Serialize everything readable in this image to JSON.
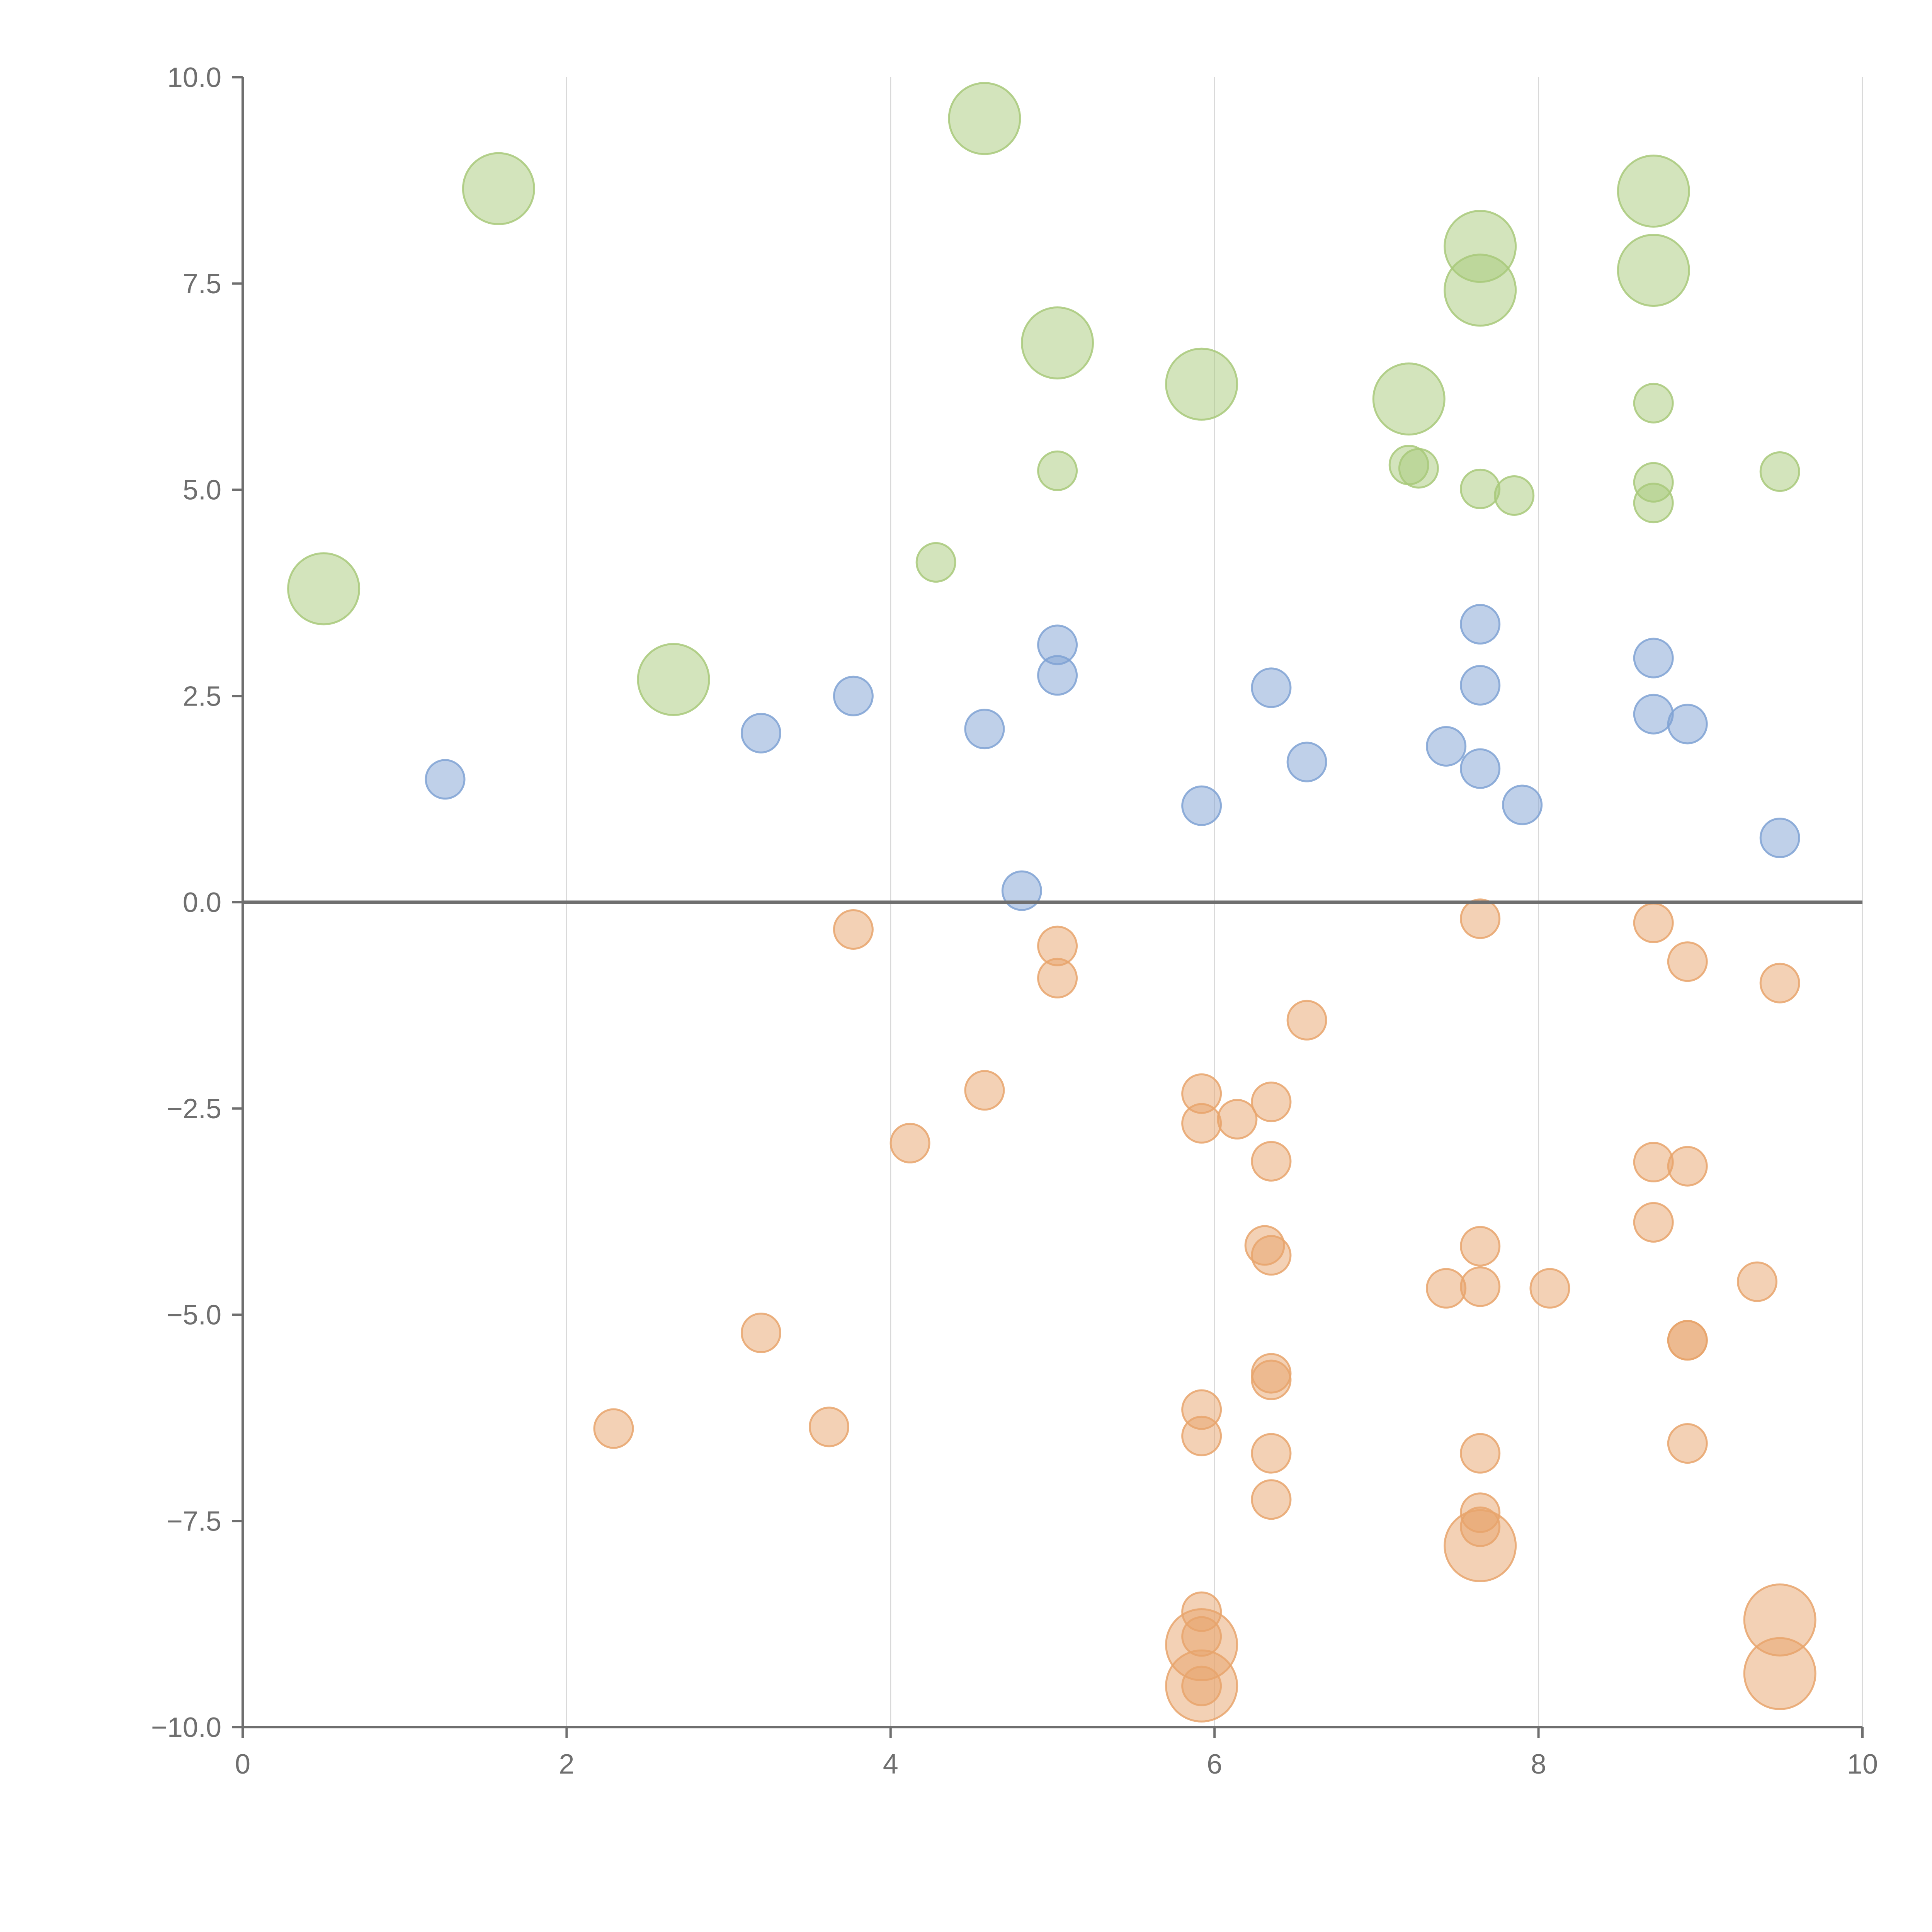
{
  "chart_data": {
    "type": "scatter",
    "title": "",
    "xlabel": "",
    "ylabel": "",
    "xlim": [
      0,
      10
    ],
    "ylim": [
      -10,
      10
    ],
    "grid": "vertical",
    "zero_line": true,
    "x_ticks": [
      0,
      2,
      4,
      6,
      8,
      10
    ],
    "x_tick_labels": [
      "0",
      "2",
      "4",
      "6",
      "8",
      "10"
    ],
    "y_ticks": [
      10,
      7.5,
      5,
      2.5,
      0,
      -2.5,
      -5,
      -7.5,
      -10
    ],
    "y_tick_labels": [
      "10.0",
      "7.5",
      "5.0",
      "2.5",
      "0.0",
      "−2.5",
      "−5.0",
      "−7.5",
      "−10.0"
    ],
    "size_legend": "relative size: 1 = small marker, 2 = large marker",
    "series": [
      {
        "name": "green",
        "color": "#a8c97a",
        "points": [
          {
            "x": 0.5,
            "y": 3.8,
            "s": 2
          },
          {
            "x": 1.58,
            "y": 8.65,
            "s": 2
          },
          {
            "x": 2.66,
            "y": 2.7,
            "s": 2
          },
          {
            "x": 4.28,
            "y": 4.12,
            "s": 1
          },
          {
            "x": 4.58,
            "y": 9.5,
            "s": 2
          },
          {
            "x": 5.03,
            "y": 6.78,
            "s": 2
          },
          {
            "x": 5.03,
            "y": 5.23,
            "s": 1
          },
          {
            "x": 5.92,
            "y": 6.28,
            "s": 2
          },
          {
            "x": 7.2,
            "y": 6.1,
            "s": 2
          },
          {
            "x": 7.2,
            "y": 5.3,
            "s": 1
          },
          {
            "x": 7.26,
            "y": 5.26,
            "s": 1
          },
          {
            "x": 7.64,
            "y": 7.95,
            "s": 2
          },
          {
            "x": 7.64,
            "y": 7.42,
            "s": 2
          },
          {
            "x": 7.64,
            "y": 5.01,
            "s": 1
          },
          {
            "x": 7.85,
            "y": 4.93,
            "s": 1
          },
          {
            "x": 8.71,
            "y": 8.62,
            "s": 2
          },
          {
            "x": 8.71,
            "y": 7.66,
            "s": 2
          },
          {
            "x": 8.71,
            "y": 6.05,
            "s": 1
          },
          {
            "x": 8.71,
            "y": 5.09,
            "s": 1
          },
          {
            "x": 8.71,
            "y": 4.84,
            "s": 1
          },
          {
            "x": 9.49,
            "y": 5.22,
            "s": 1
          }
        ]
      },
      {
        "name": "blue",
        "color": "#7fa2d4",
        "points": [
          {
            "x": 1.25,
            "y": 1.49,
            "s": 1
          },
          {
            "x": 3.2,
            "y": 2.05,
            "s": 1
          },
          {
            "x": 3.77,
            "y": 2.5,
            "s": 1
          },
          {
            "x": 4.58,
            "y": 2.1,
            "s": 1
          },
          {
            "x": 4.81,
            "y": 0.14,
            "s": 1
          },
          {
            "x": 5.03,
            "y": 3.12,
            "s": 1
          },
          {
            "x": 5.03,
            "y": 2.75,
            "s": 1
          },
          {
            "x": 5.92,
            "y": 1.17,
            "s": 1
          },
          {
            "x": 6.35,
            "y": 2.6,
            "s": 1
          },
          {
            "x": 6.57,
            "y": 1.7,
            "s": 1
          },
          {
            "x": 7.43,
            "y": 1.89,
            "s": 1
          },
          {
            "x": 7.64,
            "y": 3.37,
            "s": 1
          },
          {
            "x": 7.64,
            "y": 2.63,
            "s": 1
          },
          {
            "x": 7.64,
            "y": 1.62,
            "s": 1
          },
          {
            "x": 7.9,
            "y": 1.18,
            "s": 1
          },
          {
            "x": 8.71,
            "y": 2.96,
            "s": 1
          },
          {
            "x": 8.71,
            "y": 2.28,
            "s": 1
          },
          {
            "x": 8.92,
            "y": 2.16,
            "s": 1
          },
          {
            "x": 9.49,
            "y": 0.78,
            "s": 1
          }
        ]
      },
      {
        "name": "orange",
        "color": "#e8a46c",
        "points": [
          {
            "x": 2.29,
            "y": -6.38,
            "s": 1
          },
          {
            "x": 3.2,
            "y": -5.22,
            "s": 1
          },
          {
            "x": 3.62,
            "y": -6.36,
            "s": 1
          },
          {
            "x": 3.77,
            "y": -0.33,
            "s": 1
          },
          {
            "x": 4.12,
            "y": -2.92,
            "s": 1
          },
          {
            "x": 4.58,
            "y": -2.28,
            "s": 1
          },
          {
            "x": 5.03,
            "y": -0.53,
            "s": 1
          },
          {
            "x": 5.03,
            "y": -0.92,
            "s": 1
          },
          {
            "x": 5.92,
            "y": -2.32,
            "s": 1
          },
          {
            "x": 5.92,
            "y": -2.68,
            "s": 1
          },
          {
            "x": 6.14,
            "y": -2.63,
            "s": 1
          },
          {
            "x": 5.92,
            "y": -6.15,
            "s": 1
          },
          {
            "x": 5.92,
            "y": -6.47,
            "s": 1
          },
          {
            "x": 5.92,
            "y": -8.6,
            "s": 1
          },
          {
            "x": 5.92,
            "y": -8.9,
            "s": 1
          },
          {
            "x": 5.92,
            "y": -9.0,
            "s": 2
          },
          {
            "x": 5.92,
            "y": -9.5,
            "s": 2
          },
          {
            "x": 5.92,
            "y": -9.5,
            "s": 1
          },
          {
            "x": 6.31,
            "y": -4.16,
            "s": 1
          },
          {
            "x": 6.35,
            "y": -4.28,
            "s": 1
          },
          {
            "x": 6.35,
            "y": -2.42,
            "s": 1
          },
          {
            "x": 6.35,
            "y": -3.14,
            "s": 1
          },
          {
            "x": 6.35,
            "y": -5.71,
            "s": 1
          },
          {
            "x": 6.35,
            "y": -5.79,
            "s": 1
          },
          {
            "x": 6.35,
            "y": -6.68,
            "s": 1
          },
          {
            "x": 6.35,
            "y": -7.24,
            "s": 1
          },
          {
            "x": 6.57,
            "y": -1.43,
            "s": 1
          },
          {
            "x": 7.43,
            "y": -4.68,
            "s": 1
          },
          {
            "x": 7.64,
            "y": -0.2,
            "s": 1
          },
          {
            "x": 7.64,
            "y": -4.17,
            "s": 1
          },
          {
            "x": 7.64,
            "y": -4.66,
            "s": 1
          },
          {
            "x": 7.64,
            "y": -6.68,
            "s": 1
          },
          {
            "x": 7.64,
            "y": -7.4,
            "s": 1
          },
          {
            "x": 7.64,
            "y": -7.57,
            "s": 1
          },
          {
            "x": 7.64,
            "y": -7.8,
            "s": 2
          },
          {
            "x": 8.07,
            "y": -4.68,
            "s": 1
          },
          {
            "x": 8.71,
            "y": -0.25,
            "s": 1
          },
          {
            "x": 8.71,
            "y": -3.15,
            "s": 1
          },
          {
            "x": 8.71,
            "y": -3.88,
            "s": 1
          },
          {
            "x": 8.92,
            "y": -0.72,
            "s": 1
          },
          {
            "x": 8.92,
            "y": -3.2,
            "s": 1
          },
          {
            "x": 8.92,
            "y": -5.31,
            "s": 1
          },
          {
            "x": 8.92,
            "y": -5.31,
            "s": 1
          },
          {
            "x": 8.92,
            "y": -6.56,
            "s": 1
          },
          {
            "x": 9.35,
            "y": -4.6,
            "s": 1
          },
          {
            "x": 9.49,
            "y": -0.98,
            "s": 1
          },
          {
            "x": 9.49,
            "y": -8.7,
            "s": 2
          },
          {
            "x": 9.49,
            "y": -9.35,
            "s": 2
          }
        ]
      }
    ]
  }
}
